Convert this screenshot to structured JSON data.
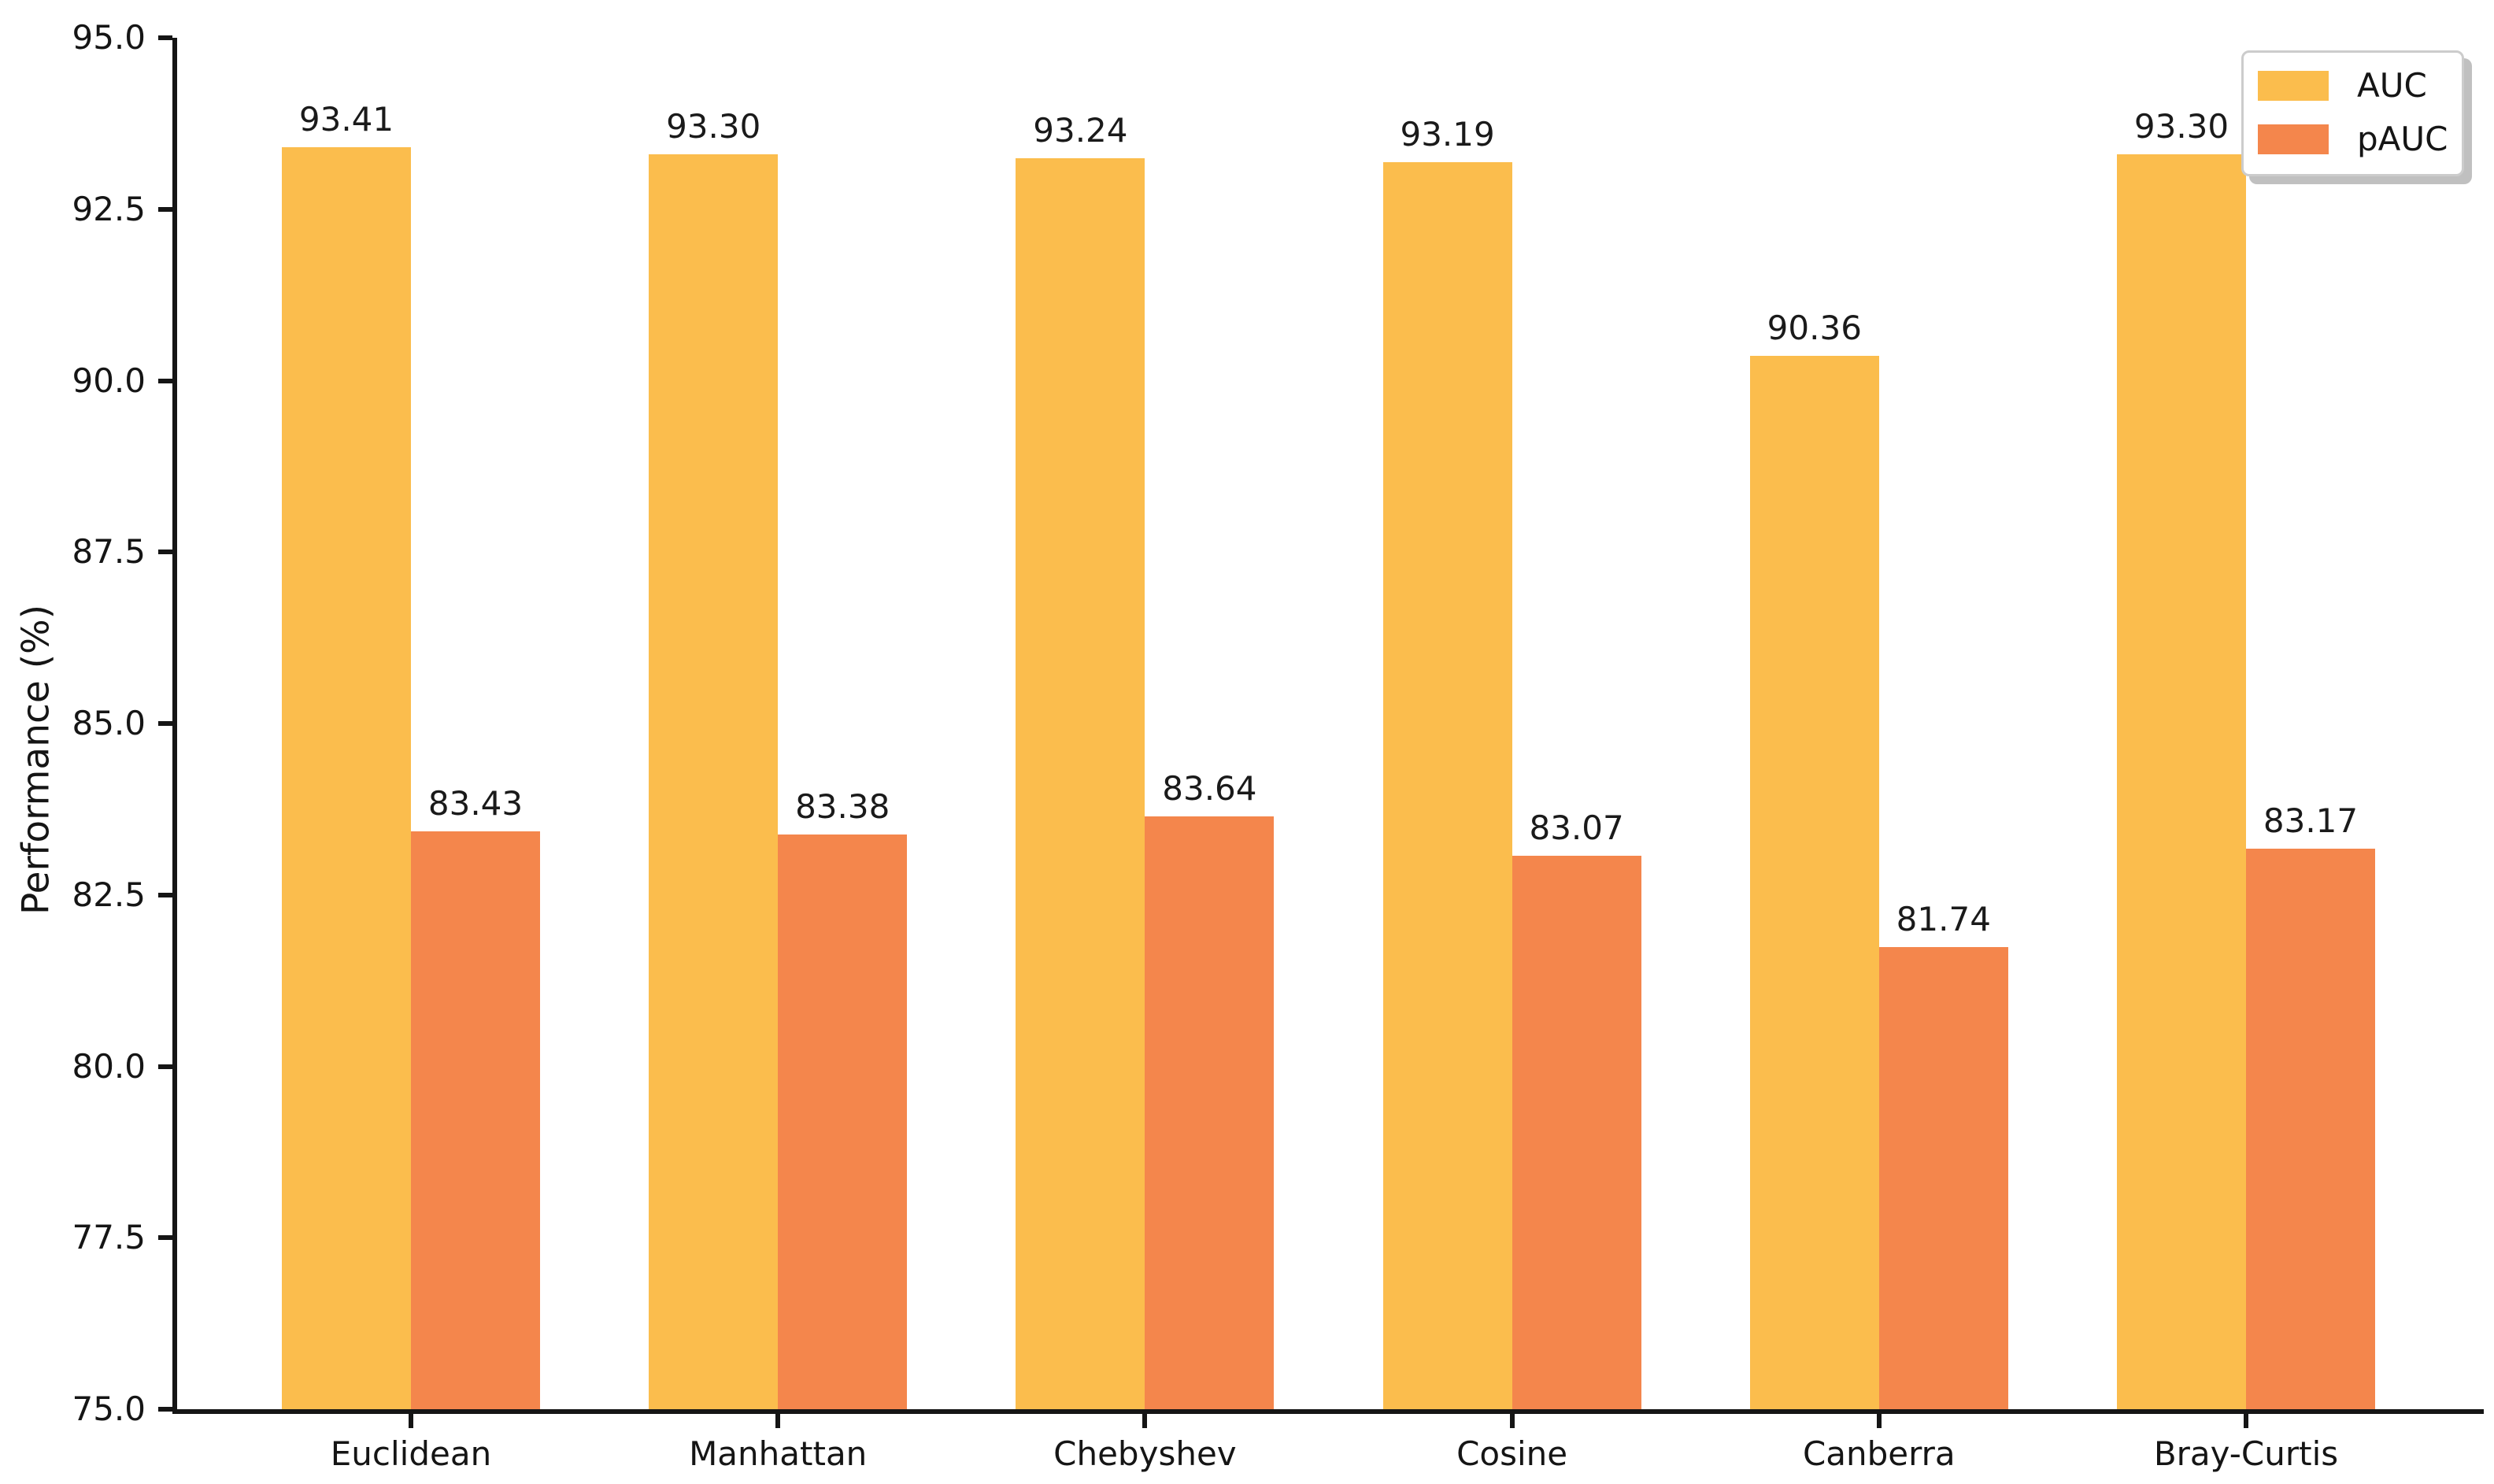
{
  "chart_data": {
    "type": "bar",
    "title": "",
    "xlabel": "",
    "ylabel": "Performance (%)",
    "categories": [
      "Euclidean",
      "Manhattan",
      "Chebyshev",
      "Cosine",
      "Canberra",
      "Bray-Curtis"
    ],
    "series": [
      {
        "name": "AUC",
        "color": "#FBBD4D",
        "values": [
          93.41,
          93.3,
          93.24,
          93.19,
          90.36,
          93.3
        ]
      },
      {
        "name": "pAUC",
        "color": "#F4864C",
        "values": [
          83.43,
          83.38,
          83.64,
          83.07,
          81.74,
          83.17
        ]
      }
    ],
    "bar_value_labels": {
      "AUC": [
        "93.41",
        "93.30",
        "93.24",
        "93.19",
        "90.36",
        "93.30"
      ],
      "pAUC": [
        "83.43",
        "83.38",
        "83.64",
        "83.07",
        "81.74",
        "83.17"
      ]
    },
    "ylim": [
      75.0,
      95.0
    ],
    "ytick_step": 2.5,
    "ytick_labels": [
      "95.0",
      "92.5",
      "90.0",
      "87.5",
      "85.0",
      "82.5",
      "80.0",
      "77.5",
      "75.0"
    ],
    "value_label_decimals": 2,
    "grid": false,
    "legend_position": "upper right",
    "legend_entries": [
      "AUC",
      "pAUC"
    ]
  },
  "colors": {
    "axis": "#151515",
    "text": "#151515",
    "background": "#ffffff",
    "legend_border": "#cccccc",
    "auc_bar": "#FBBD4D",
    "pauc_bar": "#F4864C"
  }
}
